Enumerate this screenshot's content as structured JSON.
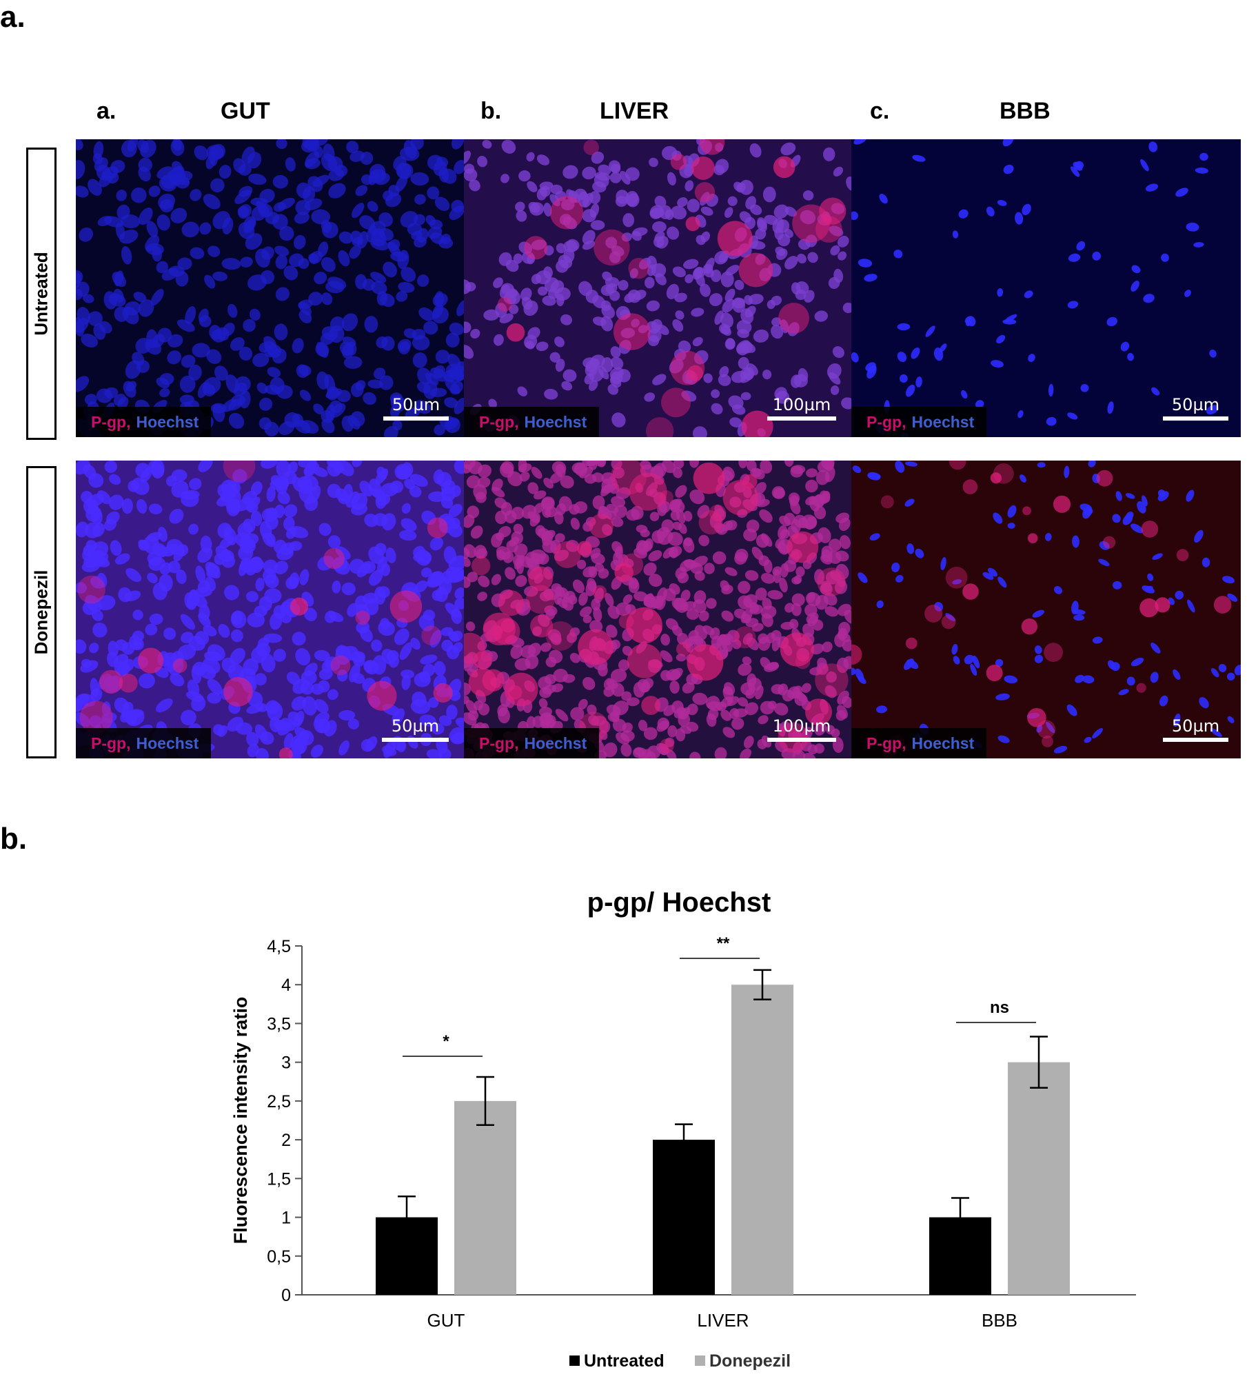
{
  "figure": {
    "panel_a_label": "a.",
    "panel_b_label": "b."
  },
  "micrographs": {
    "columns": [
      {
        "letter": "a.",
        "title": "GUT"
      },
      {
        "letter": "b.",
        "title": "LIVER"
      },
      {
        "letter": "c.",
        "title": "BBB"
      }
    ],
    "rows": [
      {
        "label": "Untreated"
      },
      {
        "label": "Donepezil"
      }
    ],
    "stain_primary": "P-gp,",
    "stain_secondary": "Hoechst",
    "scale_bars": [
      [
        "50µm",
        "100µm",
        "50µm"
      ],
      [
        "50µm",
        "100µm",
        "50µm"
      ]
    ],
    "colors": {
      "nuclei": "#2e2bff",
      "pgp": "#e0207c",
      "stain_label_pgp": "#c8106a",
      "stain_label_hoechst": "#3f5fd0"
    }
  },
  "chart_data": {
    "type": "bar",
    "title": "p-gp/ Hoechst",
    "ylabel": "Fluorescence intensity ratio",
    "xlabel": "",
    "ylim": [
      0,
      4.5
    ],
    "yticks": [
      "0",
      "0,5",
      "1",
      "1,5",
      "2",
      "2,5",
      "3",
      "3,5",
      "4",
      "4,5"
    ],
    "ytick_values": [
      0,
      0.5,
      1,
      1.5,
      2,
      2.5,
      3,
      3.5,
      4,
      4.5
    ],
    "categories": [
      "GUT",
      "LIVER",
      "BBB"
    ],
    "series": [
      {
        "name": "Untreated",
        "color": "#000000",
        "values": [
          1.0,
          2.0,
          1.0
        ],
        "errors": [
          0.27,
          0.2,
          0.25
        ]
      },
      {
        "name": "Donepezil",
        "color": "#b0b0b0",
        "values": [
          2.5,
          4.0,
          3.0
        ],
        "errors": [
          0.31,
          0.19,
          0.33
        ]
      }
    ],
    "significance": [
      "*",
      "**",
      "ns"
    ],
    "legend_position": "bottom-center",
    "grid": false
  }
}
